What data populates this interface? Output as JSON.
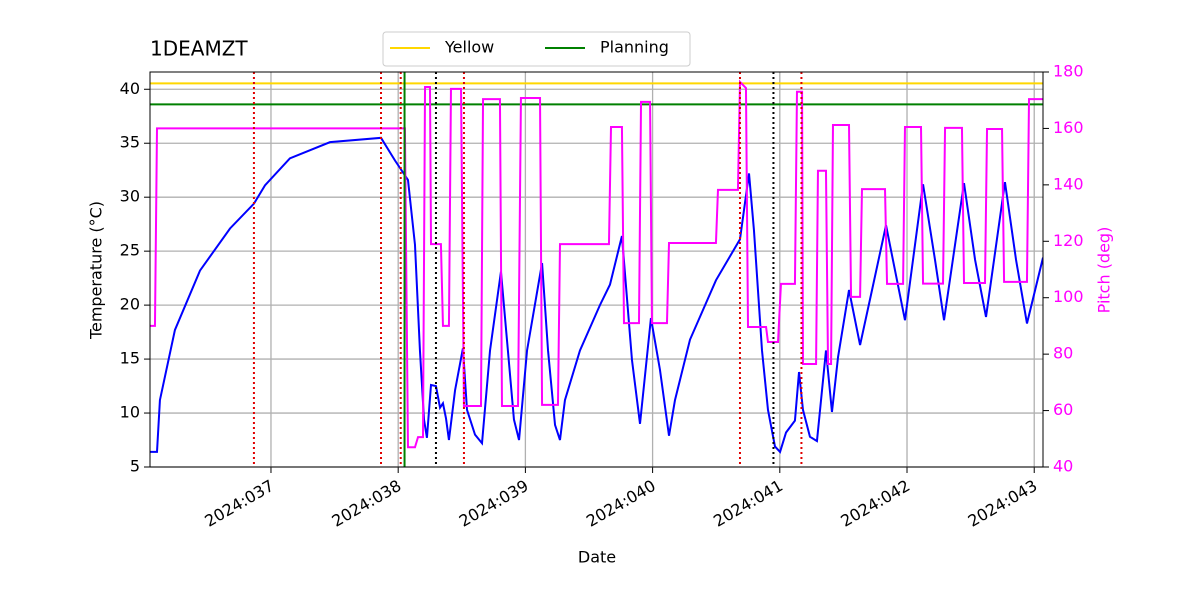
{
  "chart_data": {
    "type": "line",
    "title": "1DEAMZT",
    "xlabel": "Date",
    "ylabel": "Temperature (°C)",
    "y2label": "Pitch (deg)",
    "xlim": [
      36.049,
      43.069
    ],
    "xticks": [
      {
        "value": 37,
        "label": "2024:037"
      },
      {
        "value": 38,
        "label": "2024:038"
      },
      {
        "value": 39,
        "label": "2024:039"
      },
      {
        "value": 40,
        "label": "2024:040"
      },
      {
        "value": 41,
        "label": "2024:041"
      },
      {
        "value": 42,
        "label": "2024:042"
      },
      {
        "value": 43,
        "label": "2024:043"
      }
    ],
    "ylim": [
      5,
      41.6
    ],
    "yticks": [
      5,
      10,
      15,
      20,
      25,
      30,
      35,
      40
    ],
    "y2lim": [
      40,
      180
    ],
    "y2ticks": [
      40,
      60,
      80,
      100,
      120,
      140,
      160,
      180
    ],
    "y2color": "#ff00ff",
    "grid": true,
    "legend": "upper center",
    "series": [
      {
        "color": "#0000ff",
        "x": [
          36.049,
          36.104,
          36.127,
          36.245,
          36.442,
          36.678,
          36.866,
          36.953,
          37.149,
          37.464,
          37.865,
          37.975,
          38.077,
          38.132,
          38.171,
          38.203,
          38.226,
          38.258,
          38.297,
          38.329,
          38.352,
          38.376,
          38.399,
          38.447,
          38.509,
          38.541,
          38.604,
          38.659,
          38.722,
          38.808,
          38.855,
          38.91,
          38.95,
          39.013,
          39.131,
          39.178,
          39.233,
          39.272,
          39.311,
          39.429,
          39.586,
          39.665,
          39.759,
          39.838,
          39.901,
          39.987,
          40.058,
          40.129,
          40.176,
          40.294,
          40.498,
          40.687,
          40.758,
          40.797,
          40.86,
          40.907,
          40.962,
          41.002,
          41.049,
          41.119,
          41.151,
          41.182,
          41.237,
          41.292,
          41.363,
          41.41,
          41.458,
          41.544,
          41.631,
          41.725,
          41.835,
          41.906,
          41.984,
          42.126,
          42.22,
          42.291,
          42.448,
          42.535,
          42.621,
          42.77,
          42.857,
          42.943,
          43.069
        ],
        "values": [
          6.4,
          6.4,
          11.2,
          17.7,
          23.2,
          27.1,
          29.4,
          31.1,
          33.6,
          35.1,
          35.5,
          33.4,
          31.6,
          25.6,
          15.8,
          9.4,
          7.7,
          12.6,
          12.5,
          10.5,
          10.9,
          9.5,
          7.5,
          12.1,
          16,
          10.3,
          8.0,
          7.2,
          15.8,
          23.1,
          16.8,
          9.4,
          7.5,
          15.8,
          23.9,
          15.8,
          8.9,
          7.5,
          11.2,
          15.8,
          20.0,
          21.9,
          26.4,
          14.9,
          9.0,
          18.8,
          14.0,
          7.9,
          11.2,
          16.8,
          22.3,
          26.1,
          32.2,
          26.9,
          15.8,
          10.3,
          6.9,
          6.4,
          8.2,
          9.3,
          13.8,
          10.3,
          7.8,
          7.4,
          15.8,
          10.1,
          15.2,
          21.4,
          16.3,
          21.4,
          27.4,
          23.2,
          18.6,
          31.2,
          24.2,
          18.6,
          31.3,
          24.2,
          18.9,
          31.4,
          24.2,
          18.3,
          24.4
        ]
      },
      {
        "color": "#ff00ff",
        "axis": "y2",
        "x": [
          36.049,
          36.088,
          36.104,
          38.053,
          38.077,
          38.132,
          38.156,
          38.195,
          38.211,
          38.25,
          38.258,
          38.336,
          38.352,
          38.399,
          38.415,
          38.494,
          38.517,
          38.651,
          38.667,
          38.8,
          38.816,
          38.942,
          38.965,
          39.115,
          39.131,
          39.256,
          39.272,
          39.657,
          39.673,
          39.759,
          39.775,
          39.893,
          39.909,
          39.98,
          39.995,
          40.113,
          40.129,
          40.498,
          40.514,
          40.671,
          40.687,
          40.734,
          40.75,
          40.892,
          40.907,
          40.986,
          41.009,
          41.119,
          41.135,
          41.175,
          41.182,
          41.285,
          41.3,
          41.363,
          41.379,
          41.403,
          41.418,
          41.544,
          41.56,
          41.631,
          41.646,
          41.827,
          41.843,
          41.969,
          41.984,
          42.11,
          42.126,
          42.283,
          42.299,
          42.432,
          42.448,
          42.613,
          42.629,
          42.747,
          42.763,
          42.943,
          42.959,
          43.069
        ],
        "values": [
          90,
          90,
          160,
          160,
          47,
          47,
          50.6,
          50.6,
          174.7,
          174.7,
          119,
          119,
          90,
          90,
          174,
          174,
          61.6,
          61.6,
          170.4,
          170.4,
          61.6,
          61.6,
          170.8,
          170.8,
          62,
          62,
          119,
          119,
          160.5,
          160.5,
          91,
          91,
          169.4,
          169.4,
          91,
          91,
          119.4,
          119.4,
          138.2,
          138.2,
          176.5,
          174.3,
          89.6,
          89.6,
          84.3,
          84.3,
          104.9,
          104.9,
          173,
          173,
          76.5,
          76.5,
          145,
          145,
          76.5,
          76.5,
          161.2,
          161.2,
          100.3,
          100.3,
          138.5,
          138.5,
          104.9,
          104.9,
          160.5,
          160.5,
          105,
          105,
          160.2,
          160.2,
          105.2,
          105.2,
          159.8,
          159.8,
          105.6,
          105.6,
          170.4,
          170.4
        ]
      }
    ],
    "hlines": [
      {
        "name": "Yellow",
        "color": "#ffd700",
        "value": 40.55
      },
      {
        "name": "Planning",
        "color": "#008000",
        "value": 38.6
      }
    ],
    "vlines": [
      {
        "x": 36.866,
        "color": "#e00000",
        "style": "dotted"
      },
      {
        "x": 37.865,
        "color": "#e00000",
        "style": "dotted"
      },
      {
        "x": 38.02,
        "color": "#e00000",
        "style": "dotted"
      },
      {
        "x": 38.05,
        "color": "#008000",
        "style": "solid"
      },
      {
        "x": 38.297,
        "color": "#000000",
        "style": "dotted"
      },
      {
        "x": 38.517,
        "color": "#e00000",
        "style": "dotted"
      },
      {
        "x": 40.687,
        "color": "#e00000",
        "style": "dotted"
      },
      {
        "x": 40.95,
        "color": "#000000",
        "style": "dotted"
      },
      {
        "x": 41.17,
        "color": "#e00000",
        "style": "dotted"
      }
    ]
  }
}
